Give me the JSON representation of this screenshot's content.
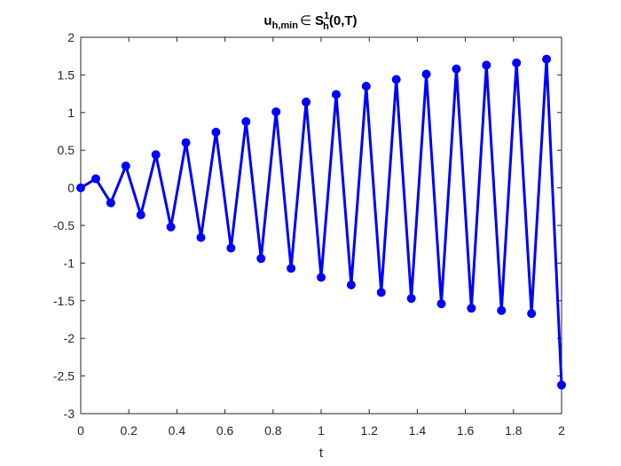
{
  "chart_data": {
    "type": "line",
    "title": {
      "main": "u",
      "main_sub": "h,min",
      "symbol": "∈",
      "space": "S",
      "space_sup": "1",
      "space_sub": "h",
      "args": "(0,T)"
    },
    "xlabel": "t",
    "ylabel": "",
    "xlim": [
      0,
      2
    ],
    "ylim": [
      -3,
      2
    ],
    "x_ticks": [
      0,
      0.2,
      0.4,
      0.6,
      0.8,
      1,
      1.2,
      1.4,
      1.6,
      1.8,
      2
    ],
    "x_tick_labels": [
      "0",
      "0.2",
      "0.4",
      "0.6",
      "0.8",
      "1",
      "1.2",
      "1.4",
      "1.6",
      "1.8",
      "2"
    ],
    "y_ticks": [
      -3,
      -2.5,
      -2,
      -1.5,
      -1,
      -0.5,
      0,
      0.5,
      1,
      1.5,
      2
    ],
    "y_tick_labels": [
      "-3",
      "-2.5",
      "-2",
      "-1.5",
      "-1",
      "-0.5",
      "0",
      "0.5",
      "1",
      "1.5",
      "2"
    ],
    "grid": false,
    "line_color": "#0000ff",
    "marker": "filled-circle",
    "series": [
      {
        "x": [
          0,
          0.0625,
          0.125,
          0.1875,
          0.25,
          0.3125,
          0.375,
          0.4375,
          0.5,
          0.5625,
          0.625,
          0.6875,
          0.75,
          0.8125,
          0.875,
          0.9375,
          1.0,
          1.0625,
          1.125,
          1.1875,
          1.25,
          1.3125,
          1.375,
          1.4375,
          1.5,
          1.5625,
          1.625,
          1.6875,
          1.75,
          1.8125,
          1.875,
          1.9375,
          2.0
        ],
        "y": [
          0.0,
          0.12,
          -0.2,
          0.29,
          -0.36,
          0.44,
          -0.52,
          0.6,
          -0.66,
          0.74,
          -0.8,
          0.88,
          -0.94,
          1.01,
          -1.07,
          1.14,
          -1.19,
          1.24,
          -1.29,
          1.35,
          -1.39,
          1.44,
          -1.47,
          1.51,
          -1.54,
          1.58,
          -1.6,
          1.63,
          -1.63,
          1.66,
          -1.67,
          1.71,
          -2.62
        ]
      }
    ]
  }
}
